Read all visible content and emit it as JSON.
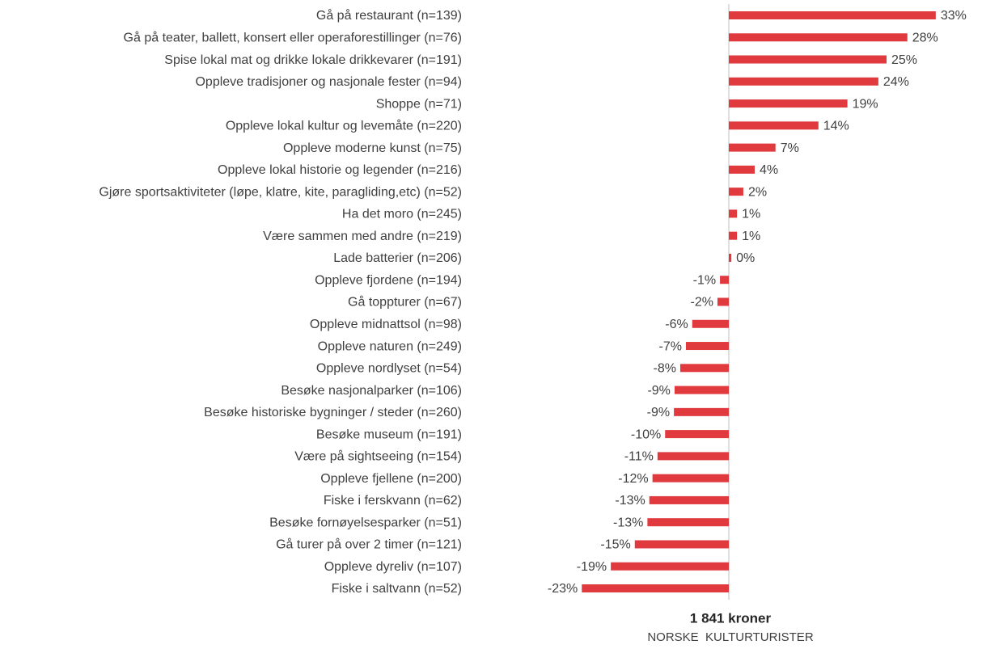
{
  "chart_data": {
    "type": "barh",
    "color": "#e0393e",
    "categories": [
      "Gå på restaurant (n=139)",
      "Gå på teater, ballett, konsert eller operaforestillinger (n=76)",
      "Spise lokal mat og drikke lokale drikkevarer (n=191)",
      "Oppleve tradisjoner og nasjonale fester (n=94)",
      "Shoppe (n=71)",
      "Oppleve lokal kultur og levemåte (n=220)",
      "Oppleve moderne kunst (n=75)",
      "Oppleve lokal historie og legender (n=216)",
      "Gjøre sportsaktiviteter (løpe, klatre, kite, paragliding,etc) (n=52)",
      "Ha det moro (n=245)",
      "Være sammen med andre (n=219)",
      "Lade batterier (n=206)",
      "Oppleve fjordene (n=194)",
      "Gå toppturer (n=67)",
      "Oppleve midnattsol (n=98)",
      "Oppleve naturen (n=249)",
      "Oppleve nordlyset (n=54)",
      "Besøke nasjonalparker (n=106)",
      "Besøke historiske bygninger / steder (n=260)",
      "Besøke museum (n=191)",
      "Være på sightseeing (n=154)",
      "Oppleve fjellene (n=200)",
      "Fiske i ferskvann (n=62)",
      "Besøke fornøyelsesparker (n=51)",
      "Gå turer på over 2 timer (n=121)",
      "Oppleve dyreliv (n=107)",
      "Fiske i saltvann (n=52)"
    ],
    "values": [
      32.8,
      28.3,
      25.0,
      23.7,
      18.8,
      14.2,
      7.4,
      4.1,
      2.3,
      1.3,
      1.3,
      0.4,
      -1.4,
      -1.8,
      -5.8,
      -6.8,
      -7.7,
      -8.6,
      -8.7,
      -10.1,
      -11.3,
      -12.1,
      -12.6,
      -12.9,
      -14.9,
      -18.7,
      -23.3
    ],
    "value_labels": [
      "33%",
      "28%",
      "25%",
      "24%",
      "19%",
      "14%",
      "7%",
      "4%",
      "2%",
      "1%",
      "1%",
      "0%",
      "-1%",
      "-2%",
      "-6%",
      "-7%",
      "-8%",
      "-9%",
      "-9%",
      "-10%",
      "-11%",
      "-12%",
      "-13%",
      "-13%",
      "-15%",
      "-19%",
      "-23%"
    ],
    "xlabel": "1 841 kroner",
    "xlabel_sub": "NORSKE  KULTURTURISTER"
  }
}
